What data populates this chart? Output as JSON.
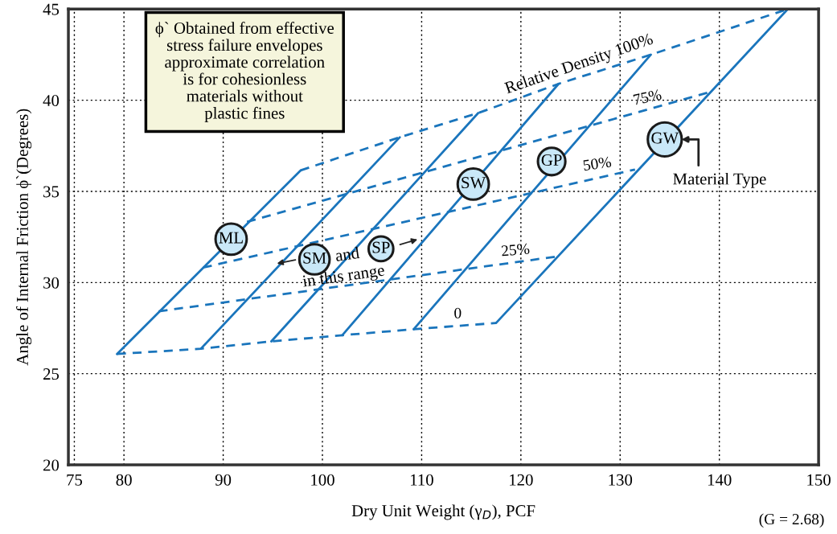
{
  "chart_data": {
    "type": "line",
    "xlabel": "Dry Unit Weight (γ$_{D}$), PCF",
    "ylabel": "Angle of Internal Friction ϕ`(Degrees)",
    "xlim": [
      74.4,
      150
    ],
    "ylim": [
      20,
      45
    ],
    "xticks": [
      75,
      80,
      90,
      100,
      110,
      120,
      130,
      140,
      150
    ],
    "yticks": [
      20,
      25,
      30,
      35,
      40,
      45
    ],
    "grid": true,
    "line_style": "solid",
    "series": [
      {
        "color": "#1a75bc",
        "x": [
          79.3,
          97.8
        ],
        "values": [
          26.08,
          36.15
        ]
      },
      {
        "color": "#1a75bc",
        "x": [
          87.75,
          107.8
        ],
        "values": [
          26.37,
          37.97
        ]
      },
      {
        "color": "#1a75bc",
        "x": [
          94.85,
          115.7
        ],
        "values": [
          26.77,
          39.3
        ]
      },
      {
        "color": "#1a75bc",
        "x": [
          102.0,
          123.8
        ],
        "values": [
          27.11,
          40.9
        ]
      },
      {
        "color": "#1a75bc",
        "x": [
          109.2,
          133.1
        ],
        "values": [
          27.44,
          42.5
        ]
      },
      {
        "color": "#1a75bc",
        "x": [
          117.5,
          146.9
        ],
        "values": [
          27.78,
          45.0
        ]
      },
      {
        "color": "#1a75bc",
        "line_style": "dashed",
        "x": [
          79.3,
          87.75,
          94.85,
          102.0,
          109.2,
          117.5
        ],
        "values": [
          26.08,
          26.37,
          26.77,
          27.11,
          27.44,
          27.78
        ]
      },
      {
        "color": "#1a75bc",
        "line_style": "dashed",
        "x": [
          83.5,
          123.8
        ],
        "values": [
          28.42,
          31.44
        ]
      },
      {
        "color": "#1a75bc",
        "line_style": "dashed",
        "x": [
          87.97,
          131.5
        ],
        "values": [
          30.82,
          36.2
        ]
      },
      {
        "color": "#1a75bc",
        "line_style": "dashed",
        "x": [
          92.4,
          139.2
        ],
        "values": [
          33.33,
          40.47
        ]
      },
      {
        "color": "#1a75bc",
        "line_style": "dashed",
        "x": [
          97.8,
          107.8,
          115.7,
          123.8,
          133.1,
          146.9
        ],
        "values": [
          36.15,
          37.97,
          39.3,
          40.9,
          42.5,
          45.0
        ]
      }
    ],
    "annotations": [
      "ϕ` Obtained from effective\nstress failure envelopes\napproximate correlation\nis for cohesionless\nmaterials without\nplastic fines",
      "Relative Density 100%",
      "75%",
      "50%",
      "25%",
      "0",
      {
        "text": "ML",
        "x": 90.8,
        "y": 32.38
      },
      {
        "text": "SM",
        "x": 99.2,
        "y": 31.27
      },
      {
        "text": "SP",
        "x": 105.9,
        "y": 31.85
      },
      {
        "text": "SW",
        "x": 115.2,
        "y": 35.4
      },
      {
        "text": "GP",
        "x": 123.1,
        "y": 36.64
      },
      {
        "text": "GW",
        "x": 134.5,
        "y": 37.85
      },
      "and",
      "in this range",
      "Material Type",
      "(G = 2.68)"
    ]
  }
}
